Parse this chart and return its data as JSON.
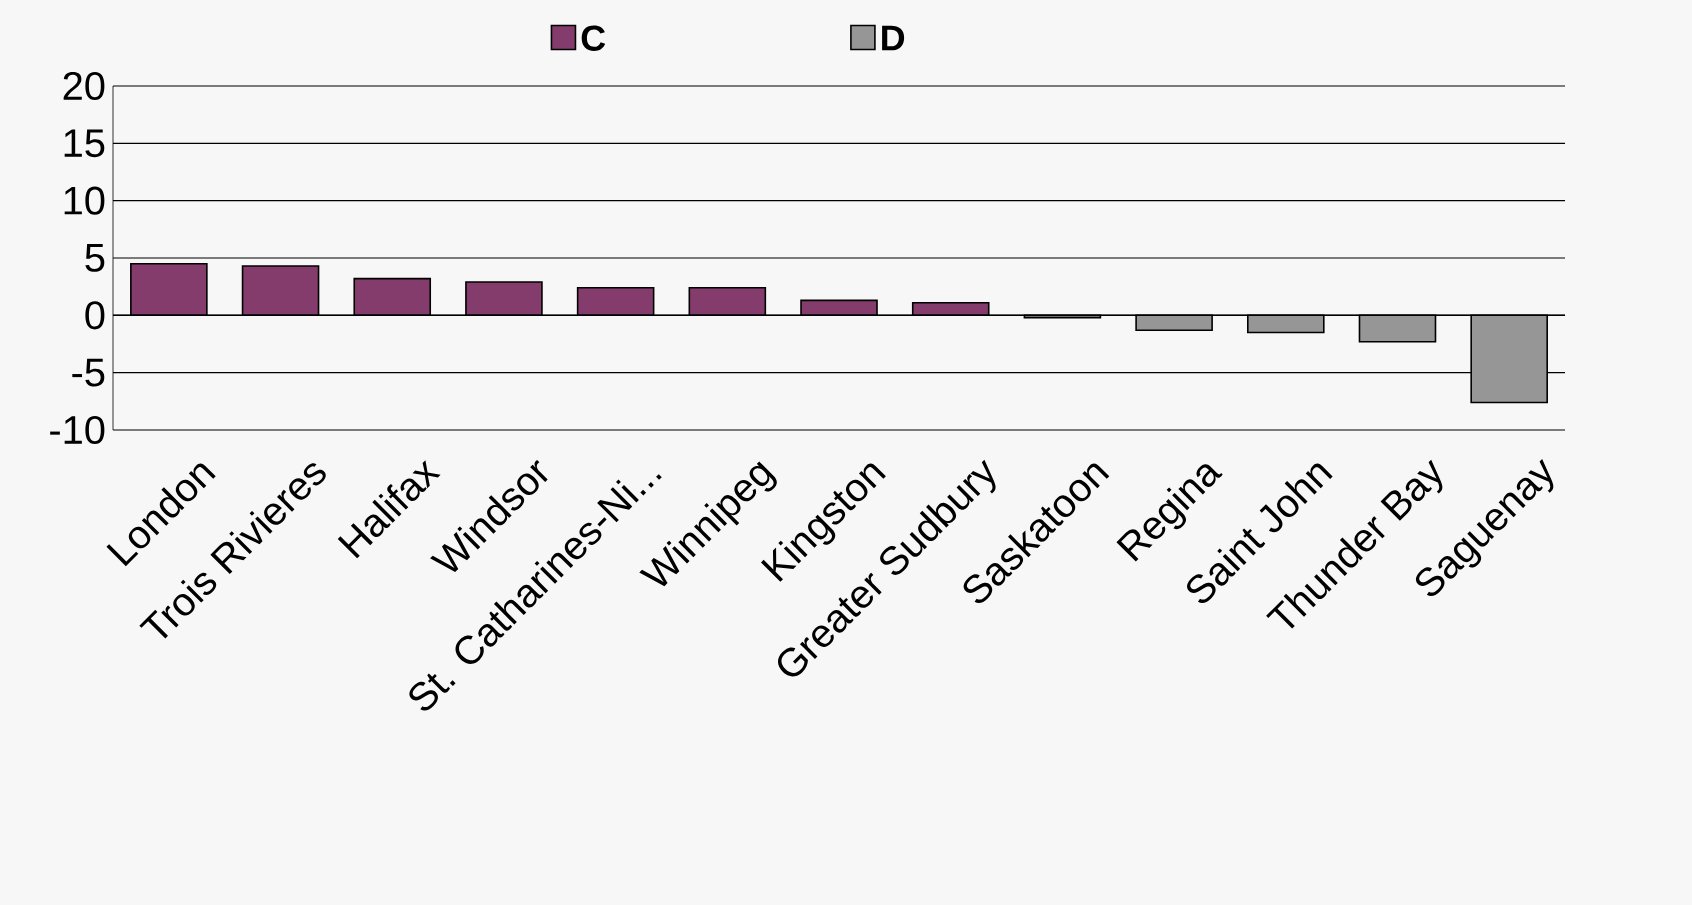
{
  "chart_data": {
    "type": "bar",
    "categories": [
      "London",
      "Trois Rivieres",
      "Halifax",
      "Windsor",
      "St. Catharines-Ni...",
      "Winnipeg",
      "Kingston",
      "Greater Sudbury",
      "Saskatoon",
      "Regina",
      "Saint John",
      "Thunder Bay",
      "Saguenay"
    ],
    "series": [
      {
        "name": "C",
        "color": "#843c6c",
        "values": [
          4.5,
          4.3,
          3.2,
          2.9,
          2.4,
          2.4,
          1.3,
          1.1,
          null,
          null,
          null,
          null,
          null
        ]
      },
      {
        "name": "D",
        "color": "#969696",
        "values": [
          null,
          null,
          null,
          null,
          null,
          null,
          null,
          null,
          -0.2,
          -1.3,
          -1.5,
          -2.3,
          -7.6
        ]
      }
    ],
    "ylim": [
      -10,
      20
    ],
    "yticks": [
      -10,
      -5,
      0,
      5,
      10,
      15,
      20
    ],
    "grid": "y",
    "legend": "top"
  }
}
